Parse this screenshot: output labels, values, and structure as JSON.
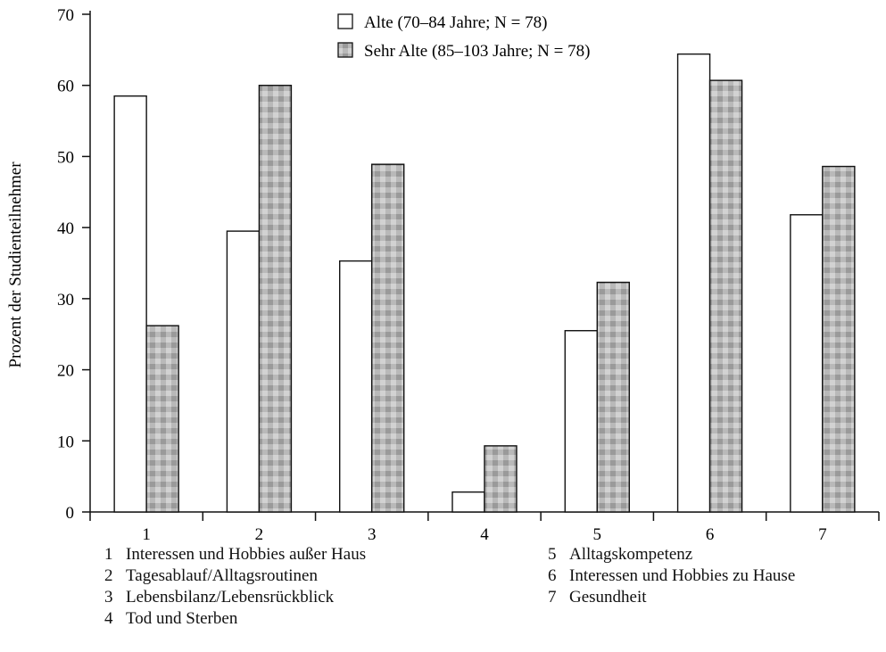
{
  "chart_data": {
    "type": "bar",
    "categories": [
      "1",
      "2",
      "3",
      "4",
      "5",
      "6",
      "7"
    ],
    "series": [
      {
        "name": "Alte (70–84 Jahre; N = 78)",
        "values": [
          58.5,
          39.5,
          35.3,
          2.8,
          25.5,
          64.4,
          41.8
        ],
        "fill": "#ffffff"
      },
      {
        "name": "Sehr Alte (85–103 Jahre; N = 78)",
        "values": [
          26.2,
          60.0,
          48.9,
          9.3,
          32.3,
          60.7,
          48.6
        ],
        "fill": "#b8b8b8"
      }
    ],
    "title": "",
    "xlabel": "",
    "ylabel": "Prozent der Studienteilnehmer",
    "ylim": [
      0,
      70
    ],
    "yticks": [
      "0",
      "10",
      "20",
      "30",
      "40",
      "50",
      "60",
      "70"
    ],
    "grid": false,
    "legend_position": "top-center",
    "category_key": [
      {
        "num": "1",
        "label": "Interessen und Hobbies außer Haus"
      },
      {
        "num": "2",
        "label": "Tagesablauf/Alltagsroutinen"
      },
      {
        "num": "3",
        "label": "Lebensbilanz/Lebensrückblick"
      },
      {
        "num": "4",
        "label": "Tod und Sterben"
      },
      {
        "num": "5",
        "label": "Alltagskompetenz"
      },
      {
        "num": "6",
        "label": "Interessen und Hobbies zu Hause"
      },
      {
        "num": "7",
        "label": "Gesundheit"
      }
    ]
  }
}
